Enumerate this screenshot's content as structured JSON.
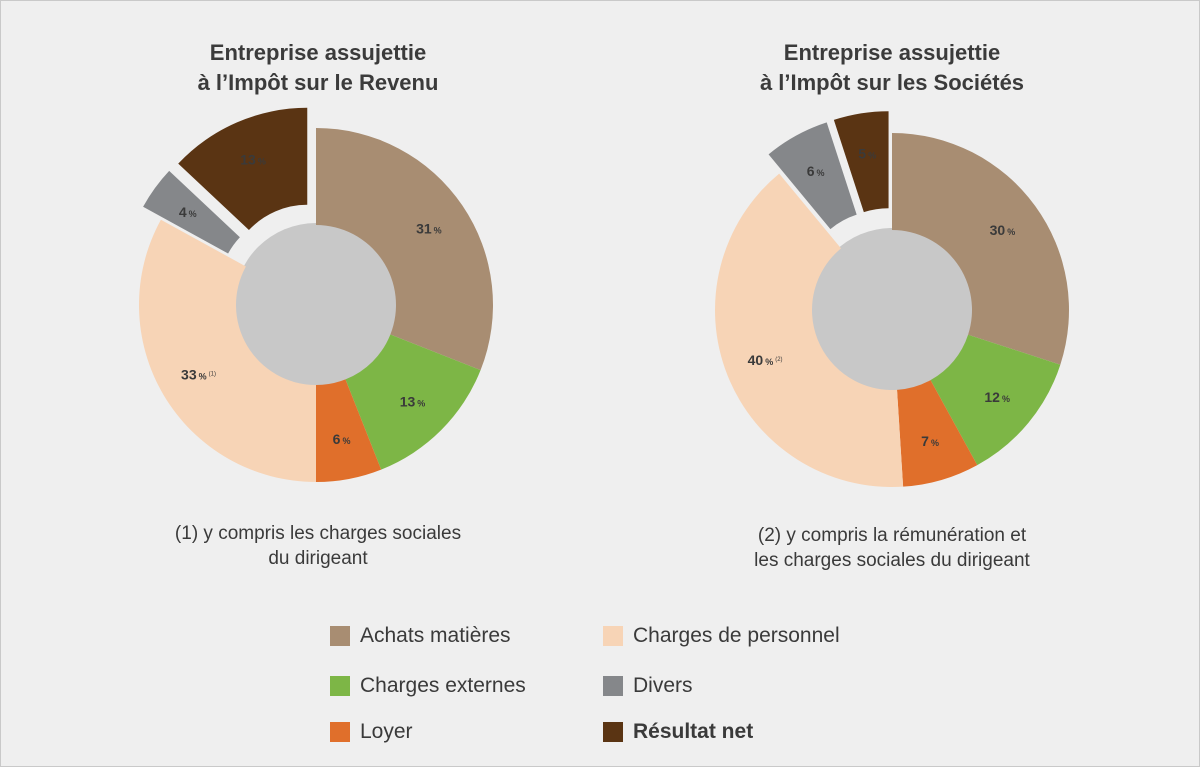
{
  "colors": {
    "achats": "#a88d72",
    "personnel": "#f7d4b6",
    "externes": "#7db646",
    "divers": "#85878a",
    "loyer": "#e06f2b",
    "resultat": "#5a3413"
  },
  "chart_data": [
    {
      "type": "pie",
      "title": [
        "Entreprise assujettie",
        "à l’Impôt sur le Revenu"
      ],
      "slices": [
        {
          "key": "achats",
          "label": "31",
          "value": 31,
          "suffix": "%",
          "note": "",
          "exploded": false
        },
        {
          "key": "externes",
          "label": "13",
          "value": 13,
          "suffix": "%",
          "note": "",
          "exploded": false
        },
        {
          "key": "loyer",
          "label": "6",
          "value": 6,
          "suffix": "%",
          "note": "",
          "exploded": false
        },
        {
          "key": "personnel",
          "label": "33",
          "value": 33,
          "suffix": "%",
          "note": "(1)",
          "exploded": false
        },
        {
          "key": "divers",
          "label": "4",
          "value": 4,
          "suffix": "%",
          "note": "",
          "exploded": true
        },
        {
          "key": "resultat",
          "label": "13",
          "value": 13,
          "suffix": "%",
          "note": "",
          "exploded": true
        }
      ],
      "footnote": [
        "(1) y compris les charges sociales",
        "du dirigeant"
      ]
    },
    {
      "type": "pie",
      "title": [
        "Entreprise assujettie",
        "à l’Impôt sur les Sociétés"
      ],
      "slices": [
        {
          "key": "achats",
          "label": "30",
          "value": 30,
          "suffix": "%",
          "note": "",
          "exploded": false
        },
        {
          "key": "externes",
          "label": "12",
          "value": 12,
          "suffix": "%",
          "note": "",
          "exploded": false
        },
        {
          "key": "loyer",
          "label": "7",
          "value": 7,
          "suffix": "%",
          "note": "",
          "exploded": false
        },
        {
          "key": "personnel",
          "label": "40",
          "value": 40,
          "suffix": "%",
          "note": "(2)",
          "exploded": false
        },
        {
          "key": "divers",
          "label": "6",
          "value": 6,
          "suffix": "%",
          "note": "",
          "exploded": true
        },
        {
          "key": "resultat",
          "label": "5",
          "value": 5,
          "suffix": "%",
          "note": "",
          "exploded": true
        }
      ],
      "footnote": [
        "(2) y compris la rémunération et",
        "les charges sociales du dirigeant"
      ]
    }
  ],
  "legend": [
    {
      "key": "achats",
      "label": "Achats matières",
      "bold": false
    },
    {
      "key": "personnel",
      "label": "Charges de personnel",
      "bold": false
    },
    {
      "key": "externes",
      "label": "Charges externes",
      "bold": false
    },
    {
      "key": "divers",
      "label": "Divers",
      "bold": false
    },
    {
      "key": "loyer",
      "label": "Loyer",
      "bold": false
    },
    {
      "key": "resultat",
      "label": "Résultat net",
      "bold": true
    }
  ]
}
